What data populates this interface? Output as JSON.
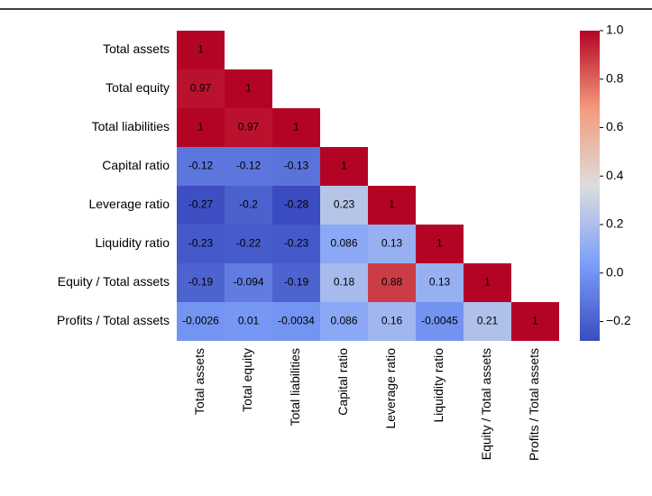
{
  "chart_data": {
    "type": "heatmap",
    "colormap": "coolwarm",
    "rows": [
      "Total assets",
      "Total equity",
      "Total liabilities",
      "Capital ratio",
      "Leverage ratio",
      "Liquidity ratio",
      "Equity / Total assets",
      "Profits / Total assets"
    ],
    "columns": [
      "Total assets",
      "Total equity",
      "Total liabilities",
      "Capital ratio",
      "Leverage ratio",
      "Liquidity ratio",
      "Equity / Total assets",
      "Profits / Total assets"
    ],
    "values": [
      [
        1,
        null,
        null,
        null,
        null,
        null,
        null,
        null
      ],
      [
        0.97,
        1,
        null,
        null,
        null,
        null,
        null,
        null
      ],
      [
        1,
        0.97,
        1,
        null,
        null,
        null,
        null,
        null
      ],
      [
        -0.12,
        -0.12,
        -0.13,
        1,
        null,
        null,
        null,
        null
      ],
      [
        -0.27,
        -0.2,
        -0.28,
        0.23,
        1,
        null,
        null,
        null
      ],
      [
        -0.23,
        -0.22,
        -0.23,
        0.086,
        0.13,
        1,
        null,
        null
      ],
      [
        -0.19,
        -0.094,
        -0.19,
        0.18,
        0.88,
        0.13,
        1,
        null
      ],
      [
        -0.0026,
        0.01,
        -0.0034,
        0.086,
        0.16,
        -0.0045,
        0.21,
        1
      ]
    ],
    "clim": [
      -0.28,
      1
    ],
    "cticks": [
      {
        "value": 1,
        "label": "1.0"
      },
      0.8,
      0.6,
      0.4,
      0.2,
      {
        "value": 0,
        "label": "0.0"
      },
      {
        "value": -0.2,
        "label": "−0.2"
      }
    ]
  }
}
